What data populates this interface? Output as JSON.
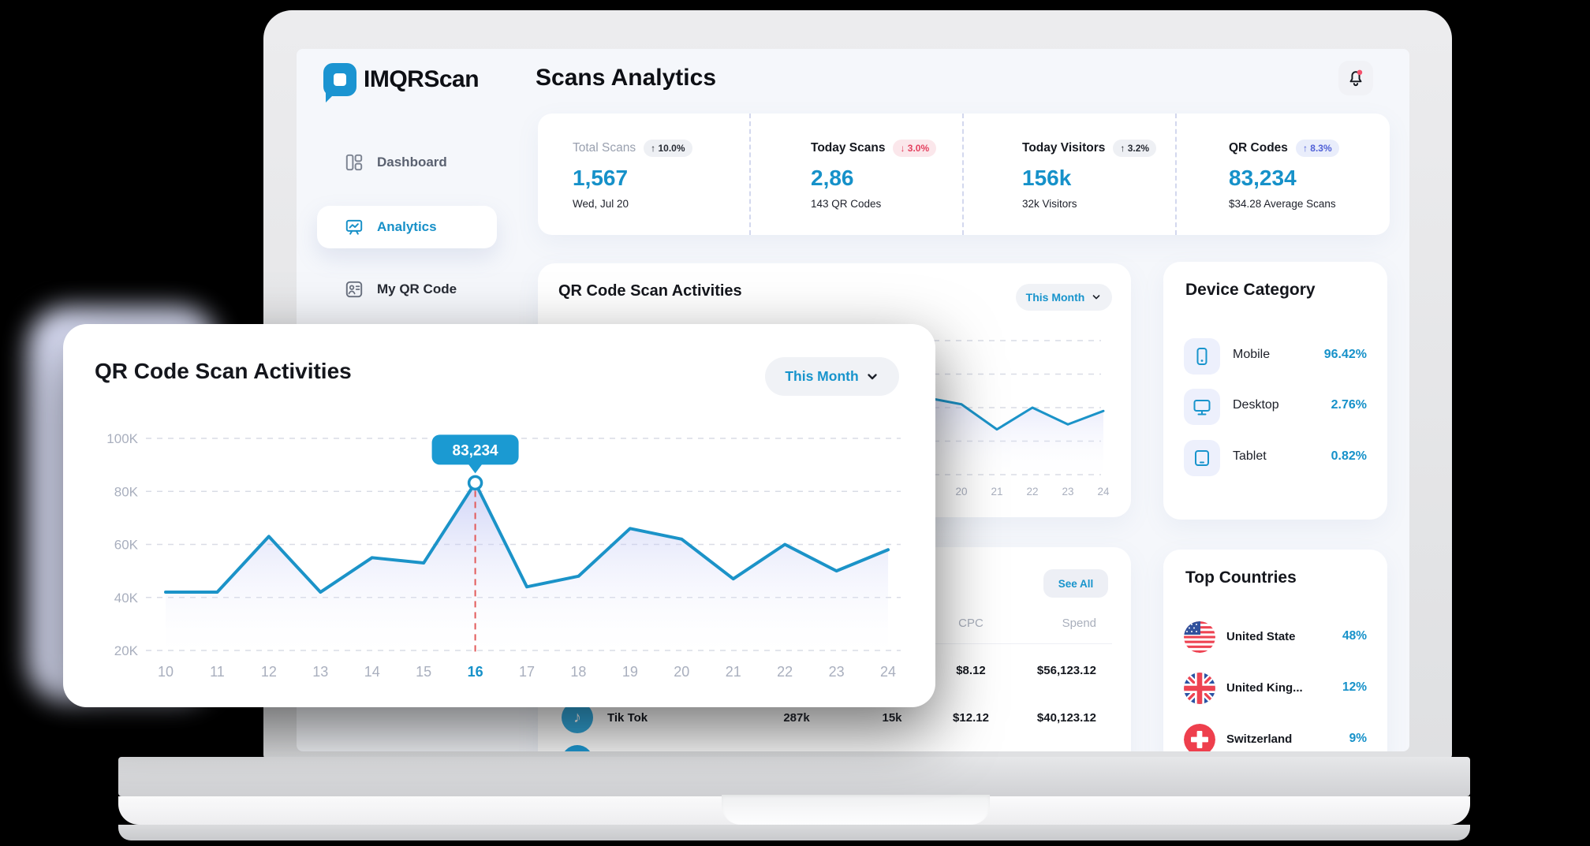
{
  "brand": {
    "name": "IMQRScan"
  },
  "header": {
    "title": "Scans Analytics"
  },
  "sidebar": {
    "items": [
      {
        "label": "Dashboard",
        "icon": "grid-dashboard",
        "active": false
      },
      {
        "label": "Analytics",
        "icon": "presentation-chart",
        "active": true
      },
      {
        "label": "My QR Code",
        "icon": "qr-contact-card",
        "active": false
      }
    ]
  },
  "stats": [
    {
      "label": "Total Scans",
      "badge": "↑ 10.0%",
      "trend": "up-neutral",
      "value": "1,567",
      "sub": "Wed, Jul 20"
    },
    {
      "label": "Today Scans",
      "badge": "↓ 3.0%",
      "trend": "down-negative",
      "value": "2,86",
      "sub": "143 QR Codes"
    },
    {
      "label": "Today Visitors",
      "badge": "↑ 3.2%",
      "trend": "up-neutral",
      "value": "156k",
      "sub": "32k Visitors"
    },
    {
      "label": "QR Codes",
      "badge": "↑ 8.3%",
      "trend": "up-positive",
      "value": "83,234",
      "sub": "$34.28 Average Scans"
    }
  ],
  "scan_activities_overlay": {
    "title": "QR Code Scan Activities",
    "filter": "This Month"
  },
  "scan_activities_background": {
    "title": "QR Code Scan Activities",
    "filter": "This Month"
  },
  "chart_data": {
    "type": "area",
    "title": "QR Code Scan Activities",
    "x": [
      "10",
      "11",
      "12",
      "13",
      "14",
      "15",
      "16",
      "17",
      "18",
      "19",
      "20",
      "21",
      "22",
      "23",
      "24"
    ],
    "values_k": [
      42,
      42,
      63,
      42,
      55,
      53,
      83.234,
      44,
      48,
      66,
      62,
      47,
      60,
      50,
      58
    ],
    "ylabel_ticks": [
      "100K",
      "80K",
      "60K",
      "40K",
      "20K"
    ],
    "ytick_values_k": [
      100,
      80,
      60,
      40,
      20
    ],
    "ylim_k": [
      20,
      100
    ],
    "grid": "dashed-horizontal",
    "legend": "none",
    "highlight": {
      "x": "16",
      "tooltip": "83,234"
    }
  },
  "device_category": {
    "title": "Device Category",
    "items": [
      {
        "label": "Mobile",
        "value": "96.42%",
        "icon": "smartphone"
      },
      {
        "label": "Desktop",
        "value": "2.76%",
        "icon": "monitor"
      },
      {
        "label": "Tablet",
        "value": "0.82%",
        "icon": "tablet"
      }
    ]
  },
  "ads_table": {
    "see_all": "See All",
    "visible_headers": [
      "CPC",
      "Spend"
    ],
    "rows": [
      {
        "cpc": "$8.12",
        "spend": "$56,123.12"
      },
      {
        "name": "Tik Tok",
        "icon": "tiktok-note",
        "metric_a": "287k",
        "metric_b": "15k",
        "cpc": "$12.12",
        "spend": "$40,123.12"
      }
    ]
  },
  "top_countries": {
    "title": "Top Countries",
    "items": [
      {
        "label": "United State",
        "value": "48%",
        "flag": "us"
      },
      {
        "label": "United King...",
        "value": "12%",
        "flag": "uk"
      },
      {
        "label": "Switzerland",
        "value": "9%",
        "flag": "ch"
      }
    ]
  },
  "icons": {
    "notification": "bell",
    "tiktok_glyph": "♪",
    "dropdown": "chevron-down"
  },
  "colors": {
    "accent_blue": "#1691c9",
    "chart_line": "#1b93c8",
    "chart_fill_top": "rgba(168,176,240,0.55)",
    "chart_fill_bottom": "rgba(255,255,255,0)",
    "tooltip_bg": "#1b9ad2",
    "marker_dashed": "#e25a5a",
    "negative_red": "#e4405f",
    "positive_indigo": "#4f5fd7"
  }
}
